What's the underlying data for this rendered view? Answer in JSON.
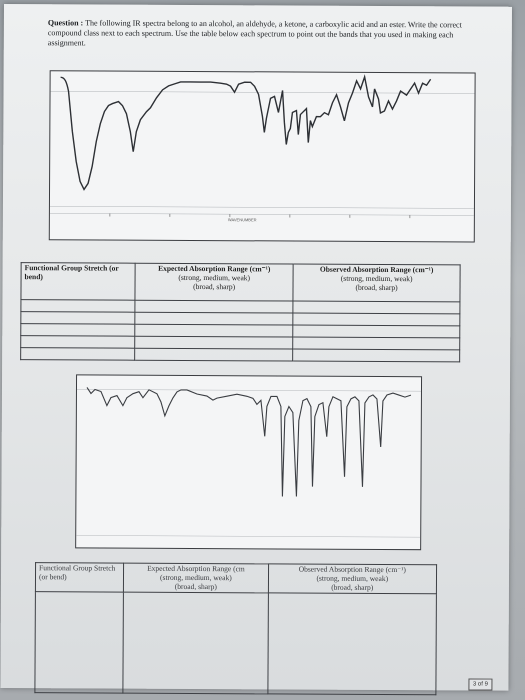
{
  "question": {
    "label": "Question :",
    "text": "The following IR spectra belong to an alcohol, an aldehyde, a ketone, a carboxylic acid and an ester. Write the correct compound class next to each spectrum. Use the table below each spectrum to point out the bands that you used in making each assignment."
  },
  "spectrum1_scale": "WAVENUMBER",
  "table1": {
    "col1": "Functional Group Stretch (or bend)",
    "col2_title": "Expected Absorption Range (cm⁻¹)",
    "col2_sub1": "(strong, medium, weak)",
    "col2_sub2": "(broad, sharp)",
    "col3_title": "Observed Absorption Range (cm⁻¹)",
    "col3_sub1": "(strong, medium, weak)",
    "col3_sub2": "(broad, sharp)"
  },
  "table2": {
    "col1": "Functional Group Stretch (or bend)",
    "col2_title": "Expected Absorption Range (cm",
    "col2_sub1": "(strong, medium, weak)",
    "col2_sub2": "(broad, sharp)",
    "col3_title": "Observed Absorption Range (cm⁻¹)",
    "col3_sub1": "(strong, medium, weak)",
    "col3_sub2": "(broad, sharp)"
  },
  "page_number": "3 of 9"
}
